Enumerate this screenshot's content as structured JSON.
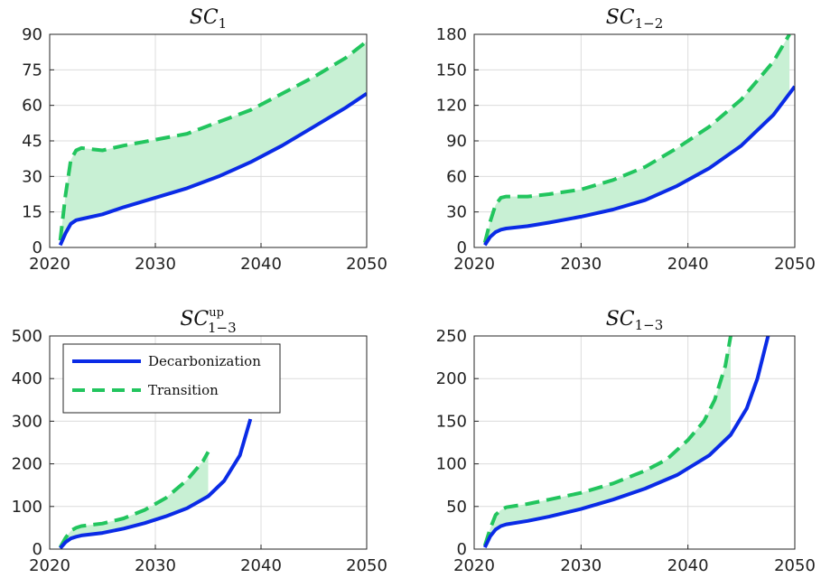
{
  "colors": {
    "decarbonization": "#0a2be6",
    "transition": "#22c55e",
    "fill": "#c8f0d4"
  },
  "legend": {
    "decarbonization": "Decarbonization",
    "transition": "Transition"
  },
  "chart_data": [
    {
      "type": "area",
      "title": {
        "base": "SC",
        "sub": "1",
        "sup": ""
      },
      "xlim": [
        2020,
        2050
      ],
      "ylim": [
        0,
        90
      ],
      "xticks": [
        2020,
        2030,
        2040,
        2050
      ],
      "yticks": [
        0,
        15,
        30,
        45,
        60,
        75,
        90
      ],
      "grid": true,
      "series": [
        {
          "name": "Decarbonization",
          "x": [
            2021,
            2021.5,
            2022,
            2022.5,
            2023,
            2025,
            2027,
            2030,
            2033,
            2036,
            2039,
            2042,
            2045,
            2048,
            2050
          ],
          "y": [
            1,
            6,
            10,
            11.5,
            12,
            14,
            17,
            21,
            25,
            30,
            36,
            43,
            51,
            59,
            65
          ]
        },
        {
          "name": "Transition",
          "x": [
            2021,
            2021.5,
            2022,
            2022.5,
            2023,
            2024,
            2025,
            2027,
            2030,
            2033,
            2036,
            2039,
            2042,
            2045,
            2048,
            2050
          ],
          "y": [
            3,
            22,
            37,
            41,
            42,
            41.5,
            41,
            43,
            45.5,
            48,
            53,
            58,
            65,
            72,
            80,
            87
          ]
        }
      ]
    },
    {
      "type": "area",
      "title": {
        "base": "SC",
        "sub": "1−2",
        "sup": ""
      },
      "xlim": [
        2020,
        2050
      ],
      "ylim": [
        0,
        180
      ],
      "xticks": [
        2020,
        2030,
        2040,
        2050
      ],
      "yticks": [
        0,
        30,
        60,
        90,
        120,
        150,
        180
      ],
      "grid": true,
      "series": [
        {
          "name": "Decarbonization",
          "x": [
            2021,
            2021.5,
            2022,
            2022.5,
            2023,
            2025,
            2027,
            2030,
            2033,
            2036,
            2039,
            2042,
            2045,
            2048,
            2050
          ],
          "y": [
            2,
            9,
            13,
            15,
            16,
            18,
            21,
            26,
            32,
            40,
            52,
            67,
            86,
            112,
            136
          ]
        },
        {
          "name": "Transition",
          "x": [
            2021,
            2021.5,
            2022,
            2022.5,
            2023,
            2025,
            2027,
            2030,
            2033,
            2036,
            2039,
            2042,
            2045,
            2048,
            2049.5
          ],
          "y": [
            4,
            22,
            36,
            42,
            43,
            43,
            45,
            49,
            57,
            68,
            84,
            102,
            125,
            157,
            180
          ]
        }
      ]
    },
    {
      "type": "area",
      "title": {
        "base": "SC",
        "sub": "1−3",
        "sup": "up"
      },
      "xlim": [
        2020,
        2050
      ],
      "ylim": [
        0,
        500
      ],
      "xticks": [
        2020,
        2030,
        2040,
        2050
      ],
      "yticks": [
        0,
        100,
        200,
        300,
        400,
        500
      ],
      "grid": true,
      "legend_position": "top-left",
      "series": [
        {
          "name": "Decarbonization",
          "x": [
            2021,
            2021.5,
            2022,
            2022.5,
            2023,
            2025,
            2027,
            2029,
            2031,
            2033,
            2035,
            2036.5,
            2038,
            2039
          ],
          "y": [
            2,
            16,
            25,
            29,
            32,
            38,
            48,
            61,
            77,
            96,
            124,
            160,
            220,
            305
          ]
        },
        {
          "name": "Transition",
          "x": [
            2021,
            2021.5,
            2022,
            2022.5,
            2023,
            2025,
            2027,
            2029,
            2031,
            2033,
            2034.5,
            2035
          ],
          "y": [
            4,
            26,
            43,
            50,
            54,
            60,
            72,
            92,
            120,
            162,
            206,
            228
          ]
        }
      ]
    },
    {
      "type": "area",
      "title": {
        "base": "SC",
        "sub": "1−3",
        "sup": ""
      },
      "xlim": [
        2020,
        2050
      ],
      "ylim": [
        0,
        250
      ],
      "xticks": [
        2020,
        2030,
        2040,
        2050
      ],
      "yticks": [
        0,
        50,
        100,
        150,
        200,
        250
      ],
      "grid": true,
      "series": [
        {
          "name": "Decarbonization",
          "x": [
            2021,
            2021.5,
            2022,
            2022.5,
            2023,
            2025,
            2027,
            2030,
            2033,
            2036,
            2039,
            2042,
            2044,
            2045.5,
            2046.5,
            2047.5
          ],
          "y": [
            2,
            15,
            23,
            27,
            29,
            33,
            38,
            47,
            58,
            71,
            87,
            110,
            134,
            165,
            200,
            250
          ]
        },
        {
          "name": "Transition",
          "x": [
            2021,
            2021.5,
            2022,
            2022.5,
            2023,
            2025,
            2027,
            2030,
            2033,
            2036,
            2038,
            2040,
            2041.5,
            2042.5,
            2043.5,
            2044
          ],
          "y": [
            4,
            24,
            40,
            46,
            49,
            53,
            58,
            66,
            77,
            92,
            105,
            128,
            150,
            175,
            215,
            250
          ]
        }
      ]
    }
  ]
}
